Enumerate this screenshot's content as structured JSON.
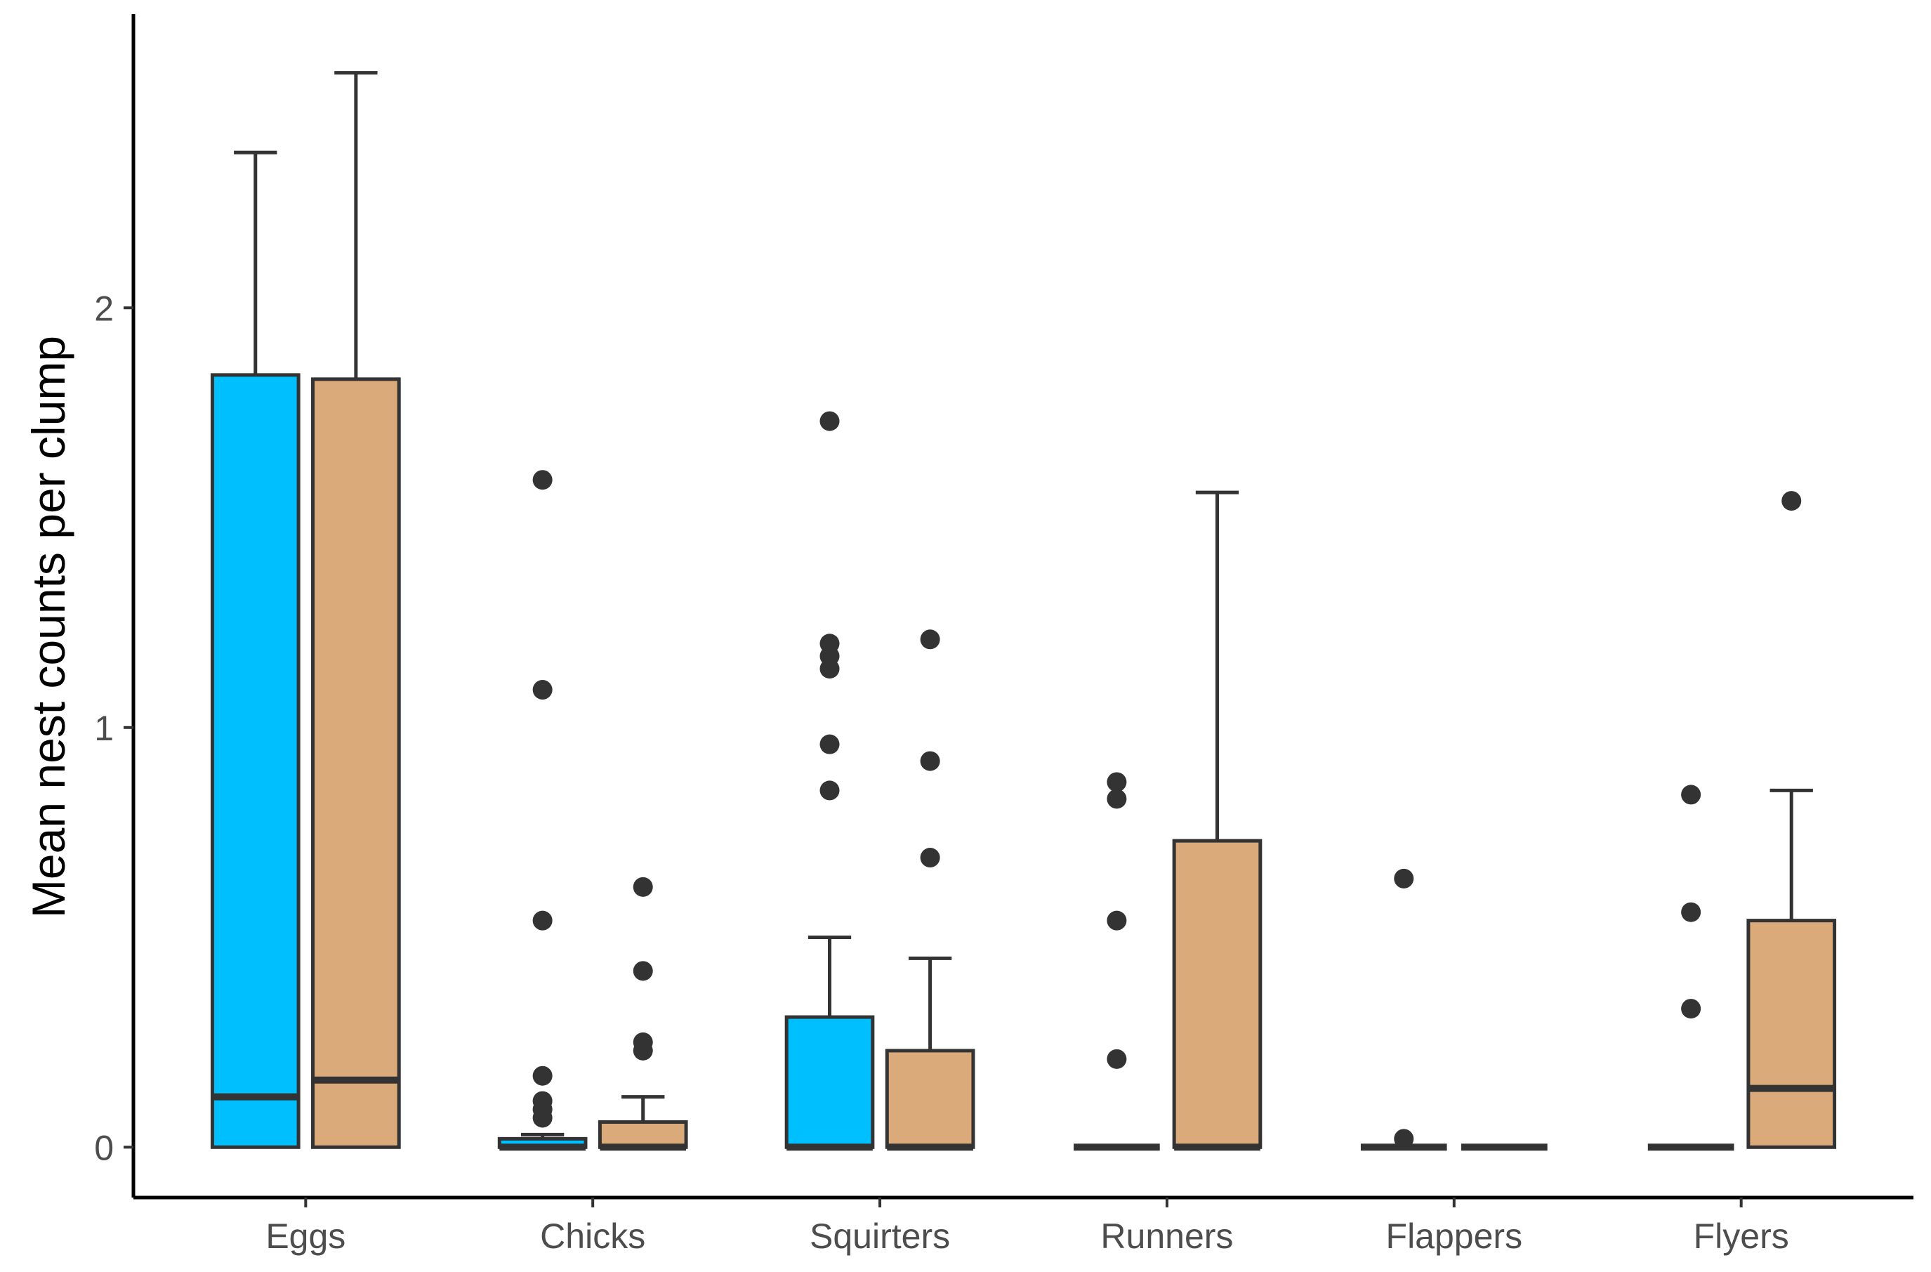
{
  "chart_data": {
    "type": "box",
    "title": "",
    "xlabel": "",
    "ylabel": "Mean nest counts per clump",
    "ylim": [
      -0.12,
      2.7
    ],
    "yticks": [
      0,
      1,
      2
    ],
    "ytick_labels": [
      "0",
      "1",
      "2"
    ],
    "categories": [
      "Eggs",
      "Chicks",
      "Squirters",
      "Runners",
      "Flappers",
      "Flyers"
    ],
    "groups": [
      {
        "name": "group-1",
        "color": "#00BFFF"
      },
      {
        "name": "group-2",
        "color": "#DBAA7A"
      }
    ],
    "boxes": [
      {
        "category": "Eggs",
        "group": 0,
        "whisker_low": 0,
        "q1": 0,
        "median": 0.12,
        "q3": 1.84,
        "whisker_high": 2.37,
        "outliers": []
      },
      {
        "category": "Eggs",
        "group": 1,
        "whisker_low": 0,
        "q1": 0,
        "median": 0.16,
        "q3": 1.83,
        "whisker_high": 2.56,
        "outliers": []
      },
      {
        "category": "Chicks",
        "group": 0,
        "whisker_low": 0,
        "q1": 0,
        "median": 0,
        "q3": 0.02,
        "whisker_high": 0.03,
        "outliers": [
          0.07,
          0.09,
          0.11,
          0.17,
          0.54,
          1.09,
          1.59
        ]
      },
      {
        "category": "Chicks",
        "group": 1,
        "whisker_low": 0,
        "q1": 0,
        "median": 0,
        "q3": 0.06,
        "whisker_high": 0.12,
        "outliers": [
          0.23,
          0.25,
          0.42,
          0.62
        ]
      },
      {
        "category": "Squirters",
        "group": 0,
        "whisker_low": 0,
        "q1": 0,
        "median": 0,
        "q3": 0.31,
        "whisker_high": 0.5,
        "outliers": [
          0.85,
          0.96,
          1.14,
          1.17,
          1.2,
          1.73
        ]
      },
      {
        "category": "Squirters",
        "group": 1,
        "whisker_low": 0,
        "q1": 0,
        "median": 0,
        "q3": 0.23,
        "whisker_high": 0.45,
        "outliers": [
          0.69,
          0.92,
          1.21
        ]
      },
      {
        "category": "Runners",
        "group": 0,
        "whisker_low": 0,
        "q1": 0,
        "median": 0,
        "q3": 0,
        "whisker_high": 0,
        "outliers": [
          0.21,
          0.54,
          0.83,
          0.87
        ]
      },
      {
        "category": "Runners",
        "group": 1,
        "whisker_low": 0,
        "q1": 0,
        "median": 0,
        "q3": 0.73,
        "whisker_high": 1.56,
        "outliers": []
      },
      {
        "category": "Flappers",
        "group": 0,
        "whisker_low": 0,
        "q1": 0,
        "median": 0,
        "q3": 0,
        "whisker_high": 0,
        "outliers": [
          0.02,
          0.64
        ]
      },
      {
        "category": "Flappers",
        "group": 1,
        "whisker_low": 0,
        "q1": 0,
        "median": 0,
        "q3": 0,
        "whisker_high": 0,
        "outliers": []
      },
      {
        "category": "Flyers",
        "group": 0,
        "whisker_low": 0,
        "q1": 0,
        "median": 0,
        "q3": 0,
        "whisker_high": 0,
        "outliers": [
          0.33,
          0.56,
          0.84
        ]
      },
      {
        "category": "Flyers",
        "group": 1,
        "whisker_low": 0,
        "q1": 0,
        "median": 0.14,
        "q3": 0.54,
        "whisker_high": 0.85,
        "outliers": [
          1.54
        ]
      }
    ],
    "grid": false,
    "legend": "none"
  }
}
